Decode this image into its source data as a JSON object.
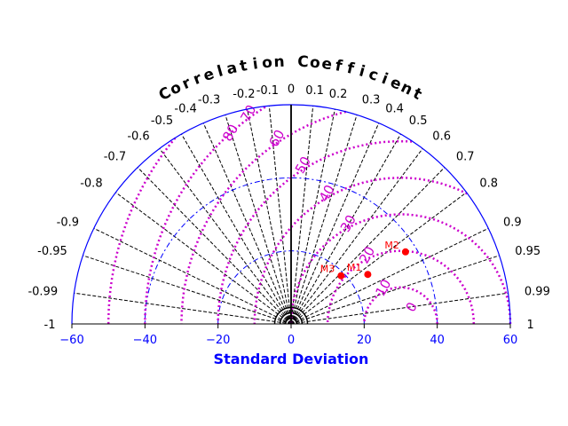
{
  "chart_data": {
    "type": "scatter",
    "subtype": "taylor-diagram",
    "title": "Correlation Coefficient",
    "xlabel": "Standard Deviation",
    "xlim": [
      -60,
      60
    ],
    "x_ticks": [
      -60,
      -40,
      -20,
      0,
      20,
      40,
      60
    ],
    "correlation_ticks": [
      {
        "value": 1,
        "label": "1"
      },
      {
        "value": 0.99,
        "label": "0.99"
      },
      {
        "value": 0.95,
        "label": "0.95"
      },
      {
        "value": 0.9,
        "label": "0.9"
      },
      {
        "value": 0.8,
        "label": "0.8"
      },
      {
        "value": 0.7,
        "label": "0.7"
      },
      {
        "value": 0.6,
        "label": "0.6"
      },
      {
        "value": 0.5,
        "label": "0.5"
      },
      {
        "value": 0.4,
        "label": "0.4"
      },
      {
        "value": 0.3,
        "label": "0.3"
      },
      {
        "value": 0.2,
        "label": "0.2"
      },
      {
        "value": 0.1,
        "label": "0.1"
      },
      {
        "value": 0,
        "label": "0"
      },
      {
        "value": -0.1,
        "label": "-0.1"
      },
      {
        "value": -0.2,
        "label": "-0.2"
      },
      {
        "value": -0.3,
        "label": "-0.3"
      },
      {
        "value": -0.4,
        "label": "-0.4"
      },
      {
        "value": -0.5,
        "label": "-0.5"
      },
      {
        "value": -0.6,
        "label": "-0.6"
      },
      {
        "value": -0.7,
        "label": "-0.7"
      },
      {
        "value": -0.8,
        "label": "-0.8"
      },
      {
        "value": -0.9,
        "label": "-0.9"
      },
      {
        "value": -0.95,
        "label": "-0.95"
      },
      {
        "value": -0.99,
        "label": "-0.99"
      },
      {
        "value": -1,
        "label": "-1"
      }
    ],
    "std_arcs": [
      20,
      40
    ],
    "reference_std": 30,
    "rms_contours": [
      {
        "value": 0,
        "label": "0"
      },
      {
        "value": 10,
        "label": "10"
      },
      {
        "value": 20,
        "label": "20"
      },
      {
        "value": 30,
        "label": "30"
      },
      {
        "value": 40,
        "label": "40"
      },
      {
        "value": 50,
        "label": "50"
      },
      {
        "value": 60,
        "label": "60"
      },
      {
        "value": 70,
        "label": "70"
      },
      {
        "value": 80,
        "label": "80"
      }
    ],
    "points": [
      {
        "name": "M1",
        "std": 25.0,
        "corr": 0.84
      },
      {
        "name": "M2",
        "std": 37.0,
        "corr": 0.846
      },
      {
        "name": "M3",
        "std": 19.0,
        "corr": 0.72
      }
    ],
    "colors": {
      "frame": "#0000ff",
      "correlation_lines": "#000000",
      "rms_contours": "#cc00cc",
      "points": "#ff0000",
      "xlabel": "#0000ff",
      "title": "#000000"
    }
  }
}
